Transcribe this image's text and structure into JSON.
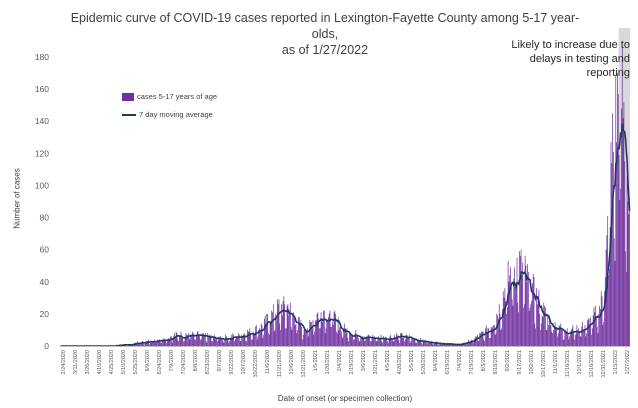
{
  "chart_data": {
    "type": "bar",
    "title_line1": "Epidemic curve of COVID-19 cases reported in Lexington-Fayette County among 5-17 year-olds,",
    "title_line2": "as of 1/27/2022",
    "xlabel": "Date of onset (or specimen collection)",
    "ylabel": "Number of cases",
    "ylim": [
      0,
      180
    ],
    "yticks": [
      0,
      20,
      40,
      60,
      80,
      100,
      120,
      140,
      160,
      180
    ],
    "grid": false,
    "legend_position": "upper-left",
    "annotation": "Likely to increase due to delays in testing and reporting",
    "x_start": "2020-02-24",
    "x_end": "2022-01-27",
    "shaded_start": "2022-01-14",
    "series": [
      {
        "name": "cases 5-17 years of age",
        "kind": "bar",
        "color": "#7030a0"
      },
      {
        "name": "7 day moving average",
        "kind": "line",
        "color": "#1f3864"
      }
    ],
    "profile": [
      [
        "2020-02-24",
        0
      ],
      [
        "2020-03-20",
        0
      ],
      [
        "2020-04-20",
        0.2
      ],
      [
        "2020-05-10",
        0.5
      ],
      [
        "2020-05-20",
        1
      ],
      [
        "2020-06-01",
        2
      ],
      [
        "2020-06-15",
        3
      ],
      [
        "2020-07-01",
        4
      ],
      [
        "2020-07-15",
        6
      ],
      [
        "2020-08-01",
        7
      ],
      [
        "2020-08-15",
        6
      ],
      [
        "2020-09-01",
        5
      ],
      [
        "2020-09-15",
        5
      ],
      [
        "2020-10-01",
        6
      ],
      [
        "2020-10-20",
        9
      ],
      [
        "2020-11-01",
        12
      ],
      [
        "2020-11-10",
        17
      ],
      [
        "2020-11-20",
        22
      ],
      [
        "2020-12-01",
        22
      ],
      [
        "2020-12-10",
        16
      ],
      [
        "2020-12-20",
        10
      ],
      [
        "2020-12-28",
        12
      ],
      [
        "2021-01-05",
        17
      ],
      [
        "2021-01-15",
        20
      ],
      [
        "2021-01-25",
        17
      ],
      [
        "2021-02-05",
        11
      ],
      [
        "2021-02-15",
        8
      ],
      [
        "2021-03-01",
        6
      ],
      [
        "2021-03-15",
        5
      ],
      [
        "2021-04-01",
        5
      ],
      [
        "2021-04-15",
        6
      ],
      [
        "2021-05-01",
        5
      ],
      [
        "2021-05-15",
        3
      ],
      [
        "2021-06-01",
        2
      ],
      [
        "2021-06-20",
        1
      ],
      [
        "2021-07-01",
        1
      ],
      [
        "2021-07-15",
        3
      ],
      [
        "2021-08-01",
        8
      ],
      [
        "2021-08-10",
        12
      ],
      [
        "2021-08-20",
        22
      ],
      [
        "2021-08-28",
        35
      ],
      [
        "2021-09-05",
        44
      ],
      [
        "2021-09-12",
        46
      ],
      [
        "2021-09-20",
        40
      ],
      [
        "2021-10-01",
        30
      ],
      [
        "2021-10-10",
        22
      ],
      [
        "2021-10-20",
        15
      ],
      [
        "2021-11-01",
        11
      ],
      [
        "2021-11-15",
        9
      ],
      [
        "2021-12-01",
        11
      ],
      [
        "2021-12-10",
        14
      ],
      [
        "2021-12-20",
        20
      ],
      [
        "2021-12-25",
        28
      ],
      [
        "2021-12-30",
        55
      ],
      [
        "2022-01-03",
        85
      ],
      [
        "2022-01-06",
        110
      ],
      [
        "2022-01-09",
        120
      ],
      [
        "2022-01-12",
        135
      ],
      [
        "2022-01-15",
        142
      ],
      [
        "2022-01-18",
        140
      ],
      [
        "2022-01-21",
        120
      ],
      [
        "2022-01-24",
        95
      ],
      [
        "2022-01-27",
        65
      ]
    ],
    "tick_labels": [
      "2/24/2020",
      "3/11/2020",
      "3/26/2020",
      "4/10/2020",
      "4/25/2020",
      "5/10/2020",
      "5/25/2020",
      "6/9/2020",
      "6/24/2020",
      "7/9/2020",
      "7/24/2020",
      "8/8/2020",
      "8/23/2020",
      "9/7/2020",
      "9/22/2020",
      "10/7/2020",
      "10/22/2020",
      "11/6/2020",
      "11/21/2020",
      "12/6/2020",
      "12/21/2020",
      "1/5/2021",
      "1/20/2021",
      "2/4/2021",
      "2/19/2021",
      "3/6/2021",
      "3/21/2021",
      "4/5/2021",
      "4/20/2021",
      "5/5/2021",
      "5/20/2021",
      "6/4/2021",
      "6/19/2021",
      "7/4/2021",
      "7/19/2021",
      "8/3/2021",
      "8/18/2021",
      "9/2/2021",
      "9/17/2021",
      "10/2/2021",
      "10/17/2021",
      "11/1/2021",
      "11/16/2021",
      "12/1/2021",
      "12/16/2021",
      "12/31/2021",
      "1/15/2022",
      "1/27/2022"
    ]
  }
}
